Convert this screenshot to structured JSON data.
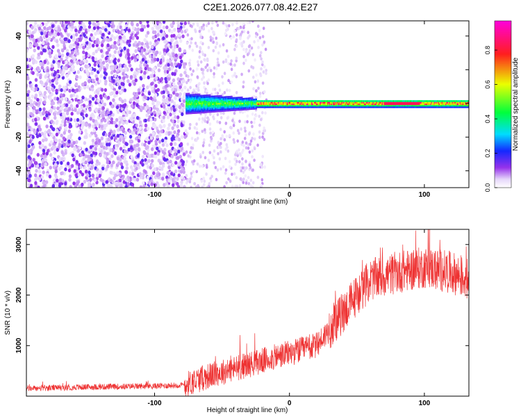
{
  "page": {
    "title": "C2E1.2026.077.08.42.E27"
  },
  "chart_data": [
    {
      "type": "heatmap",
      "title": "C2E1.2026.077.08.42.E27",
      "xlabel": "Height of straight line (km)",
      "ylabel": "Frequency (Hz)",
      "xlim": [
        -195,
        133
      ],
      "ylim": [
        -50,
        49
      ],
      "xticks": [
        -100,
        0,
        100
      ],
      "yticks": [
        -40,
        -20,
        0,
        20,
        40
      ],
      "colorbar": {
        "label": "Normalized spectral amplitude",
        "range": [
          0.0,
          0.97
        ],
        "ticks": [
          0.0,
          0.2,
          0.4,
          0.6,
          0.8
        ],
        "colormap": "rainbow (white-violet-blue-cyan-green-yellow-red-magenta)"
      },
      "description_values": {
        "noise_region_x": [
          -195,
          -77
        ],
        "noise_amplitude_range": [
          0.05,
          0.15
        ],
        "signal_band_center_hz": 0,
        "signal_band_halfwidth_hz": [
          6,
          2
        ],
        "signal_amplitude_range": [
          0.35,
          0.9
        ]
      }
    },
    {
      "type": "line",
      "xlabel": "Height of straight line (km)",
      "ylabel": "SNR (10 * v/v)",
      "xlim": [
        -195,
        133
      ],
      "ylim": [
        0,
        3300
      ],
      "xticks": [
        -100,
        0,
        100
      ],
      "yticks": [
        1000,
        2000,
        3000
      ],
      "series": [
        {
          "name": "SNR",
          "color": "#ee3333",
          "x": [
            -195,
            -150,
            -100,
            -78,
            -70,
            -60,
            -40,
            -20,
            0,
            20,
            35,
            50,
            60,
            80,
            100,
            120,
            133
          ],
          "values": [
            150,
            180,
            200,
            220,
            300,
            400,
            550,
            700,
            850,
            1000,
            1500,
            2000,
            2300,
            2450,
            2550,
            2450,
            2300
          ]
        }
      ]
    }
  ]
}
